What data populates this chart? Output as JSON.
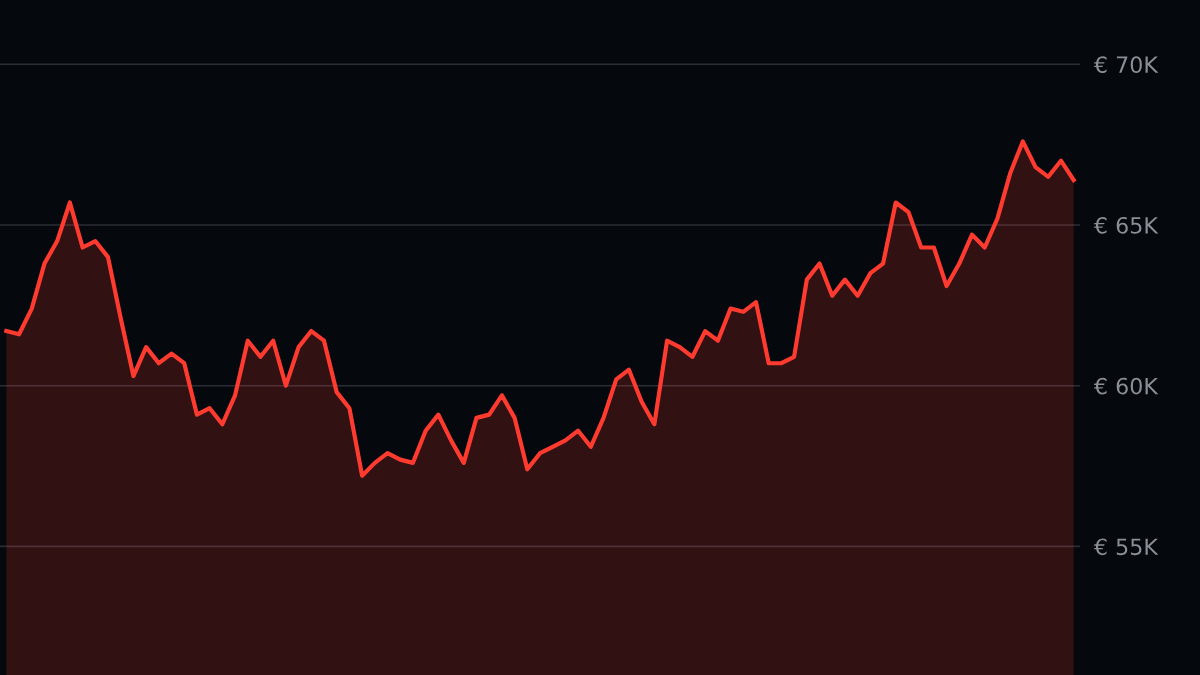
{
  "chart_data": {
    "type": "area",
    "categories": [
      null,
      null,
      null,
      null,
      null,
      null,
      null,
      null,
      null,
      null,
      null,
      null,
      null,
      null,
      null,
      null,
      null,
      null,
      null,
      null,
      null,
      null,
      null,
      null,
      null,
      null,
      null,
      null,
      null,
      null,
      null,
      null,
      null,
      null,
      null,
      null,
      null,
      null,
      null,
      null,
      null,
      null,
      null,
      null,
      null,
      null,
      null,
      null,
      null,
      null,
      null,
      null,
      null,
      null,
      null,
      null,
      null,
      null,
      null,
      null,
      null,
      null,
      null,
      null,
      null,
      null,
      null,
      null,
      null,
      null,
      null,
      null,
      null,
      null,
      null,
      null,
      null,
      null,
      null,
      null,
      null,
      null,
      null,
      null,
      null
    ],
    "values": [
      61.7,
      61.6,
      62.4,
      63.8,
      64.5,
      65.7,
      64.3,
      64.5,
      64.0,
      62.1,
      60.3,
      61.2,
      60.7,
      61.0,
      60.7,
      59.1,
      59.3,
      58.8,
      59.7,
      61.4,
      60.9,
      61.4,
      60.0,
      61.2,
      61.7,
      61.4,
      59.8,
      59.3,
      57.2,
      57.6,
      57.9,
      57.7,
      57.6,
      58.6,
      59.1,
      58.3,
      57.6,
      59.0,
      59.1,
      59.7,
      59.0,
      57.4,
      57.9,
      58.1,
      58.3,
      58.6,
      58.1,
      59.0,
      60.2,
      60.5,
      59.5,
      58.8,
      61.4,
      61.2,
      60.9,
      61.7,
      61.4,
      62.4,
      62.3,
      62.6,
      60.7,
      60.7,
      60.9,
      63.3,
      63.8,
      62.8,
      63.3,
      62.8,
      63.5,
      63.8,
      65.7,
      65.4,
      64.3,
      64.3,
      63.1,
      63.8,
      64.7,
      64.3,
      65.2,
      66.6,
      67.6,
      66.8,
      66.5,
      67.0,
      66.4
    ],
    "color": "#ff3b30",
    "ylim": [
      51,
      72
    ],
    "yticks": [
      {
        "value": 55,
        "label": "€ 55K"
      },
      {
        "value": 60,
        "label": "€ 60K"
      },
      {
        "value": 65,
        "label": "€ 65K"
      },
      {
        "value": 70,
        "label": "€ 70K"
      }
    ],
    "grid": "y"
  }
}
